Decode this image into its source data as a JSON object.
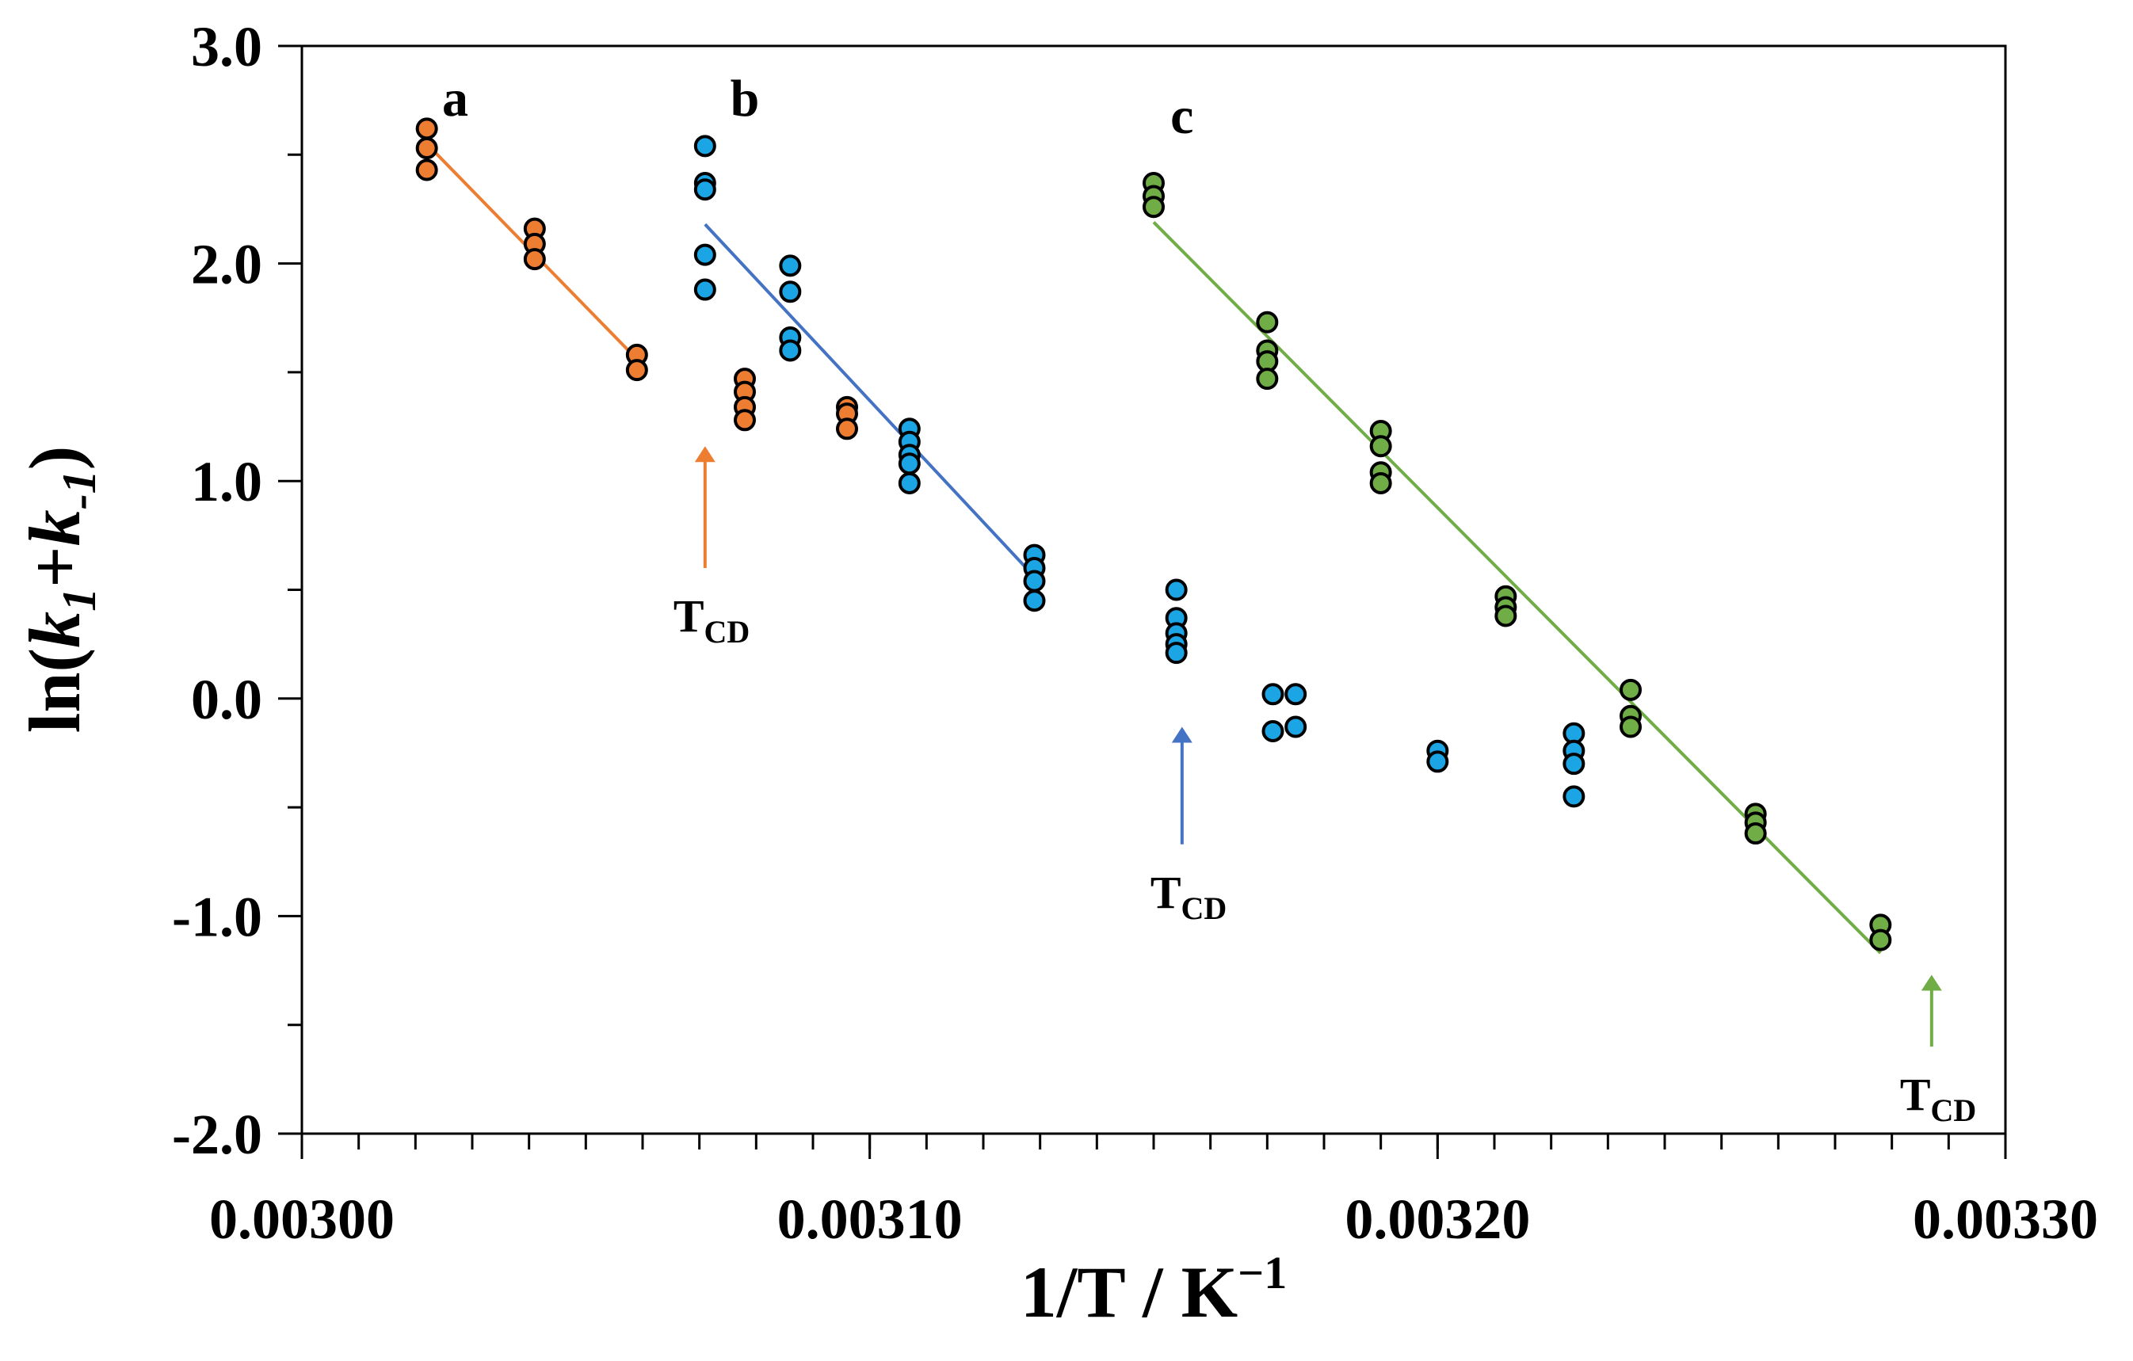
{
  "chart_data": {
    "type": "scatter",
    "title": "",
    "xlabel_parts": [
      "1/T / K",
      "−1"
    ],
    "ylabel_parts": [
      "ln(",
      "k",
      "1",
      "+",
      "k",
      "-1",
      ")"
    ],
    "xlim": [
      0.003,
      0.0033
    ],
    "ylim": [
      -2.0,
      3.0
    ],
    "x_ticks": [
      0.003,
      0.0031,
      0.0032,
      0.0033
    ],
    "x_tick_labels": [
      "0.00300",
      "0.00310",
      "0.00320",
      "0.00330"
    ],
    "y_ticks": [
      3.0,
      2.0,
      1.0,
      0.0,
      -1.0,
      -2.0
    ],
    "y_tick_labels": [
      "3.0",
      "2.0",
      "1.0",
      "0.0",
      "-1.0",
      "-2.0"
    ],
    "grid": false,
    "series": [
      {
        "name": "a",
        "color": "#ED7D31",
        "points": [
          {
            "x": 0.003022,
            "y": 2.62
          },
          {
            "x": 0.003022,
            "y": 2.53
          },
          {
            "x": 0.003022,
            "y": 2.43
          },
          {
            "x": 0.003041,
            "y": 2.16
          },
          {
            "x": 0.003041,
            "y": 2.09
          },
          {
            "x": 0.003041,
            "y": 2.02
          },
          {
            "x": 0.003059,
            "y": 1.58
          },
          {
            "x": 0.003059,
            "y": 1.51
          },
          {
            "x": 0.003078,
            "y": 1.47
          },
          {
            "x": 0.003078,
            "y": 1.41
          },
          {
            "x": 0.003078,
            "y": 1.34
          },
          {
            "x": 0.003078,
            "y": 1.28
          },
          {
            "x": 0.003096,
            "y": 1.34
          },
          {
            "x": 0.003096,
            "y": 1.31
          },
          {
            "x": 0.003096,
            "y": 1.24
          }
        ],
        "fit": {
          "x": [
            0.003022,
            0.003059
          ],
          "y": [
            2.55,
            1.56
          ]
        }
      },
      {
        "name": "b",
        "color": "#1CA5E5",
        "fit_color": "#4472C4",
        "points": [
          {
            "x": 0.003071,
            "y": 2.54
          },
          {
            "x": 0.003071,
            "y": 2.37
          },
          {
            "x": 0.003071,
            "y": 2.34
          },
          {
            "x": 0.003071,
            "y": 2.04
          },
          {
            "x": 0.003071,
            "y": 1.88
          },
          {
            "x": 0.003086,
            "y": 1.99
          },
          {
            "x": 0.003086,
            "y": 1.87
          },
          {
            "x": 0.003086,
            "y": 1.66
          },
          {
            "x": 0.003086,
            "y": 1.6
          },
          {
            "x": 0.003107,
            "y": 1.24
          },
          {
            "x": 0.003107,
            "y": 1.18
          },
          {
            "x": 0.003107,
            "y": 1.12
          },
          {
            "x": 0.003107,
            "y": 1.08
          },
          {
            "x": 0.003107,
            "y": 0.99
          },
          {
            "x": 0.003129,
            "y": 0.66
          },
          {
            "x": 0.003129,
            "y": 0.6
          },
          {
            "x": 0.003129,
            "y": 0.54
          },
          {
            "x": 0.003129,
            "y": 0.45
          },
          {
            "x": 0.003154,
            "y": 0.5
          },
          {
            "x": 0.003154,
            "y": 0.37
          },
          {
            "x": 0.003154,
            "y": 0.3
          },
          {
            "x": 0.003154,
            "y": 0.25
          },
          {
            "x": 0.003154,
            "y": 0.21
          },
          {
            "x": 0.003171,
            "y": 0.02
          },
          {
            "x": 0.003171,
            "y": -0.15
          },
          {
            "x": 0.003175,
            "y": 0.02
          },
          {
            "x": 0.003175,
            "y": -0.13
          },
          {
            "x": 0.0032,
            "y": -0.24
          },
          {
            "x": 0.0032,
            "y": -0.29
          },
          {
            "x": 0.003224,
            "y": -0.16
          },
          {
            "x": 0.003224,
            "y": -0.24
          },
          {
            "x": 0.003224,
            "y": -0.3
          },
          {
            "x": 0.003224,
            "y": -0.45
          }
        ],
        "fit": {
          "x": [
            0.003071,
            0.003129
          ],
          "y": [
            2.18,
            0.56
          ]
        }
      },
      {
        "name": "c",
        "color": "#70AD47",
        "points": [
          {
            "x": 0.00315,
            "y": 2.37
          },
          {
            "x": 0.00315,
            "y": 2.31
          },
          {
            "x": 0.00315,
            "y": 2.26
          },
          {
            "x": 0.00317,
            "y": 1.73
          },
          {
            "x": 0.00317,
            "y": 1.6
          },
          {
            "x": 0.00317,
            "y": 1.55
          },
          {
            "x": 0.00317,
            "y": 1.47
          },
          {
            "x": 0.00319,
            "y": 1.23
          },
          {
            "x": 0.00319,
            "y": 1.16
          },
          {
            "x": 0.00319,
            "y": 1.04
          },
          {
            "x": 0.00319,
            "y": 0.99
          },
          {
            "x": 0.003212,
            "y": 0.47
          },
          {
            "x": 0.003212,
            "y": 0.42
          },
          {
            "x": 0.003212,
            "y": 0.38
          },
          {
            "x": 0.003234,
            "y": 0.04
          },
          {
            "x": 0.003234,
            "y": -0.08
          },
          {
            "x": 0.003234,
            "y": -0.13
          },
          {
            "x": 0.003256,
            "y": -0.53
          },
          {
            "x": 0.003256,
            "y": -0.57
          },
          {
            "x": 0.003256,
            "y": -0.62
          },
          {
            "x": 0.003278,
            "y": -1.04
          },
          {
            "x": 0.003278,
            "y": -1.11
          }
        ],
        "fit": {
          "x": [
            0.00315,
            0.003278
          ],
          "y": [
            2.19,
            -1.17
          ]
        }
      }
    ],
    "annotations": [
      {
        "name": "a",
        "text": "a",
        "x": 0.003027,
        "y": 2.76
      },
      {
        "name": "b",
        "text": "b",
        "x": 0.003078,
        "y": 2.76
      },
      {
        "name": "c",
        "text": "c",
        "x": 0.003155,
        "y": 2.68
      }
    ],
    "tcd_markers": [
      {
        "series": "a",
        "color": "#ED7D31",
        "label": "T",
        "sub": "CD",
        "x": 0.003071,
        "y_from": 0.6,
        "y_to": 1.16
      },
      {
        "series": "b",
        "color": "#4472C4",
        "label": "T",
        "sub": "CD",
        "x": 0.003155,
        "y_from": -0.67,
        "y_to": -0.13
      },
      {
        "series": "c",
        "color": "#70AD47",
        "label": "T",
        "sub": "CD",
        "x": 0.003287,
        "y_from": -1.6,
        "y_to": -1.27
      }
    ]
  }
}
